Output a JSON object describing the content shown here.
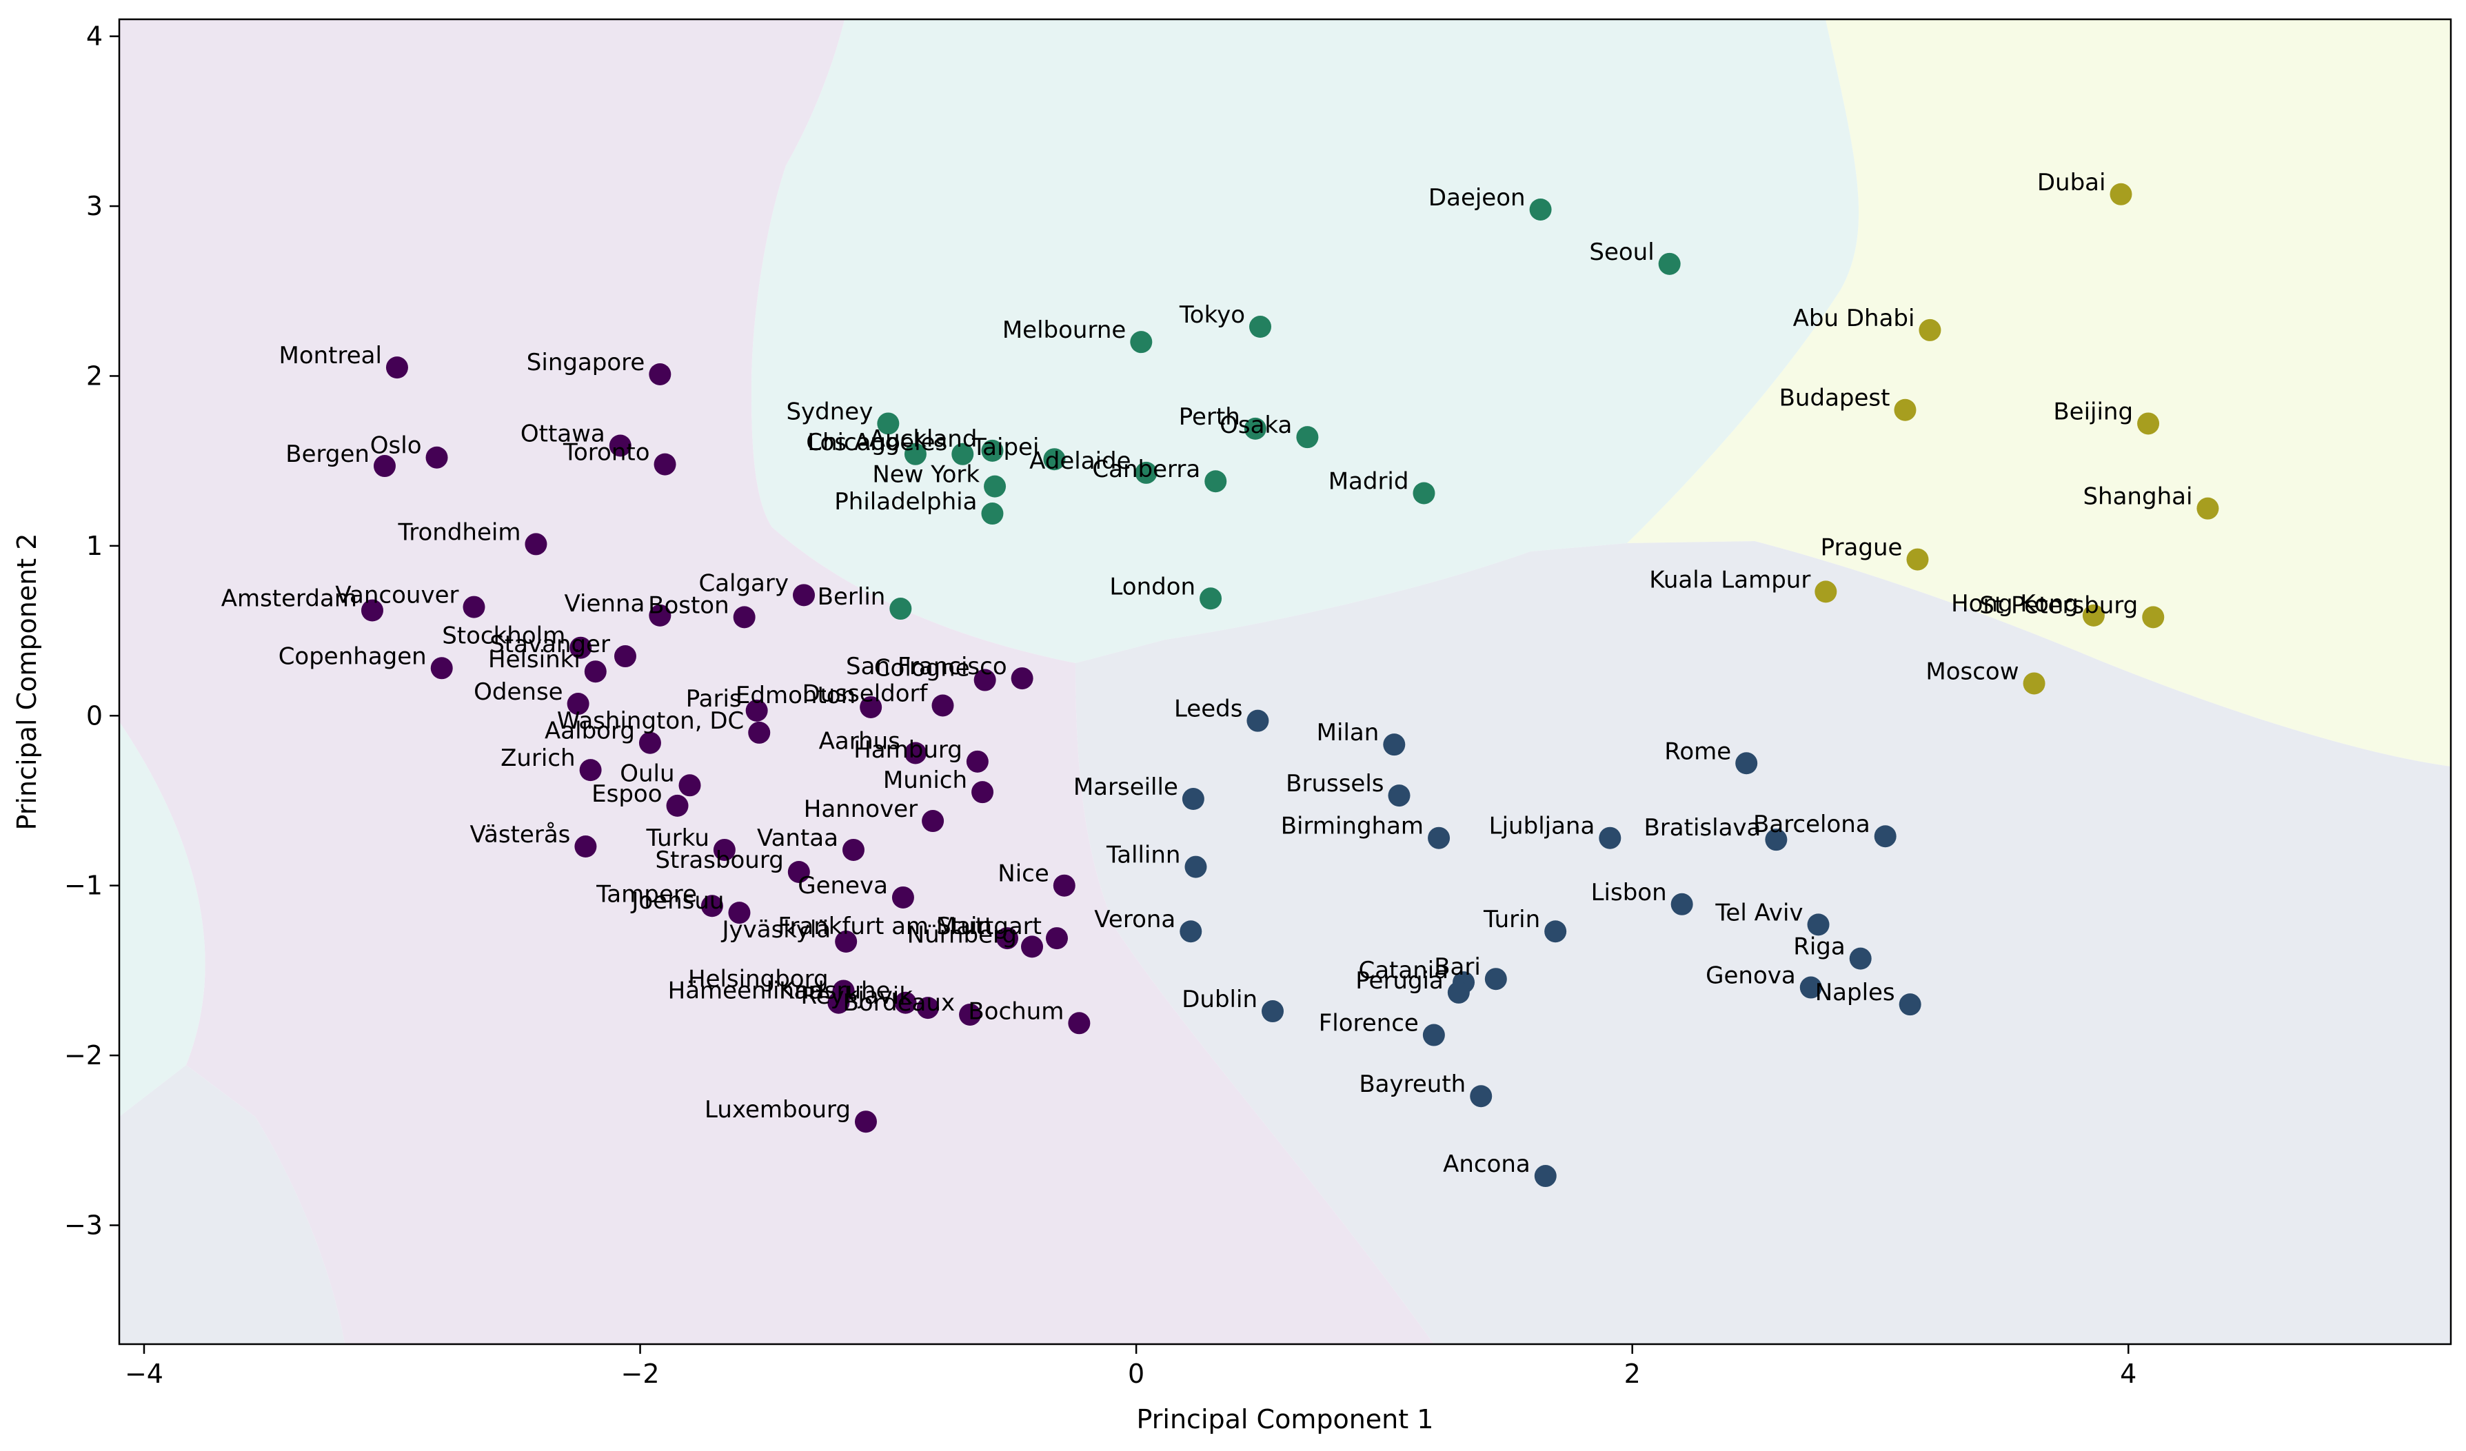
{
  "chart_data": {
    "type": "scatter",
    "title": "",
    "xlabel": "Principal Component 1",
    "ylabel": "Principal Component 2",
    "xlim": [
      -4.1,
      5.3
    ],
    "ylim": [
      -3.7,
      4.1
    ],
    "xticks": [
      -4,
      -2,
      0,
      2,
      4
    ],
    "yticks": [
      -3,
      -2,
      -1,
      0,
      1,
      2,
      3,
      4
    ],
    "xtick_labels": [
      "−4",
      "−2",
      "0",
      "2",
      "4"
    ],
    "ytick_labels": [
      "−3",
      "−2",
      "−1",
      "0",
      "1",
      "2",
      "3",
      "4"
    ],
    "grid": false,
    "cluster_colors": [
      "#440154",
      "#31688e",
      "#21918c",
      "#fde725"
    ],
    "point_colors": [
      "#440154",
      "#2b4a6b",
      "#23805f",
      "#a79e1f"
    ],
    "points": [
      {
        "label": "Montreal",
        "x": -2.98,
        "y": 2.05,
        "cluster": 0
      },
      {
        "label": "Singapore",
        "x": -1.92,
        "y": 2.01,
        "cluster": 0
      },
      {
        "label": "Ottawa",
        "x": -2.08,
        "y": 1.59,
        "cluster": 0
      },
      {
        "label": "Toronto",
        "x": -1.9,
        "y": 1.48,
        "cluster": 0
      },
      {
        "label": "Oslo",
        "x": -2.82,
        "y": 1.52,
        "cluster": 0
      },
      {
        "label": "Bergen",
        "x": -3.03,
        "y": 1.47,
        "cluster": 0
      },
      {
        "label": "Trondheim",
        "x": -2.42,
        "y": 1.01,
        "cluster": 0
      },
      {
        "label": "Amsterdam",
        "x": -3.08,
        "y": 0.62,
        "cluster": 0
      },
      {
        "label": "Vancouver",
        "x": -2.67,
        "y": 0.64,
        "cluster": 0
      },
      {
        "label": "Vienna",
        "x": -1.92,
        "y": 0.59,
        "cluster": 0
      },
      {
        "label": "Boston",
        "x": -1.58,
        "y": 0.58,
        "cluster": 0
      },
      {
        "label": "Calgary",
        "x": -1.34,
        "y": 0.71,
        "cluster": 0
      },
      {
        "label": "Copenhagen",
        "x": -2.8,
        "y": 0.28,
        "cluster": 0
      },
      {
        "label": "Stockholm",
        "x": -2.24,
        "y": 0.4,
        "cluster": 0
      },
      {
        "label": "Stavanger",
        "x": -2.06,
        "y": 0.35,
        "cluster": 0
      },
      {
        "label": "Helsinki",
        "x": -2.18,
        "y": 0.26,
        "cluster": 0
      },
      {
        "label": "Odense",
        "x": -2.25,
        "y": 0.07,
        "cluster": 0
      },
      {
        "label": "Paris",
        "x": -1.53,
        "y": 0.03,
        "cluster": 0
      },
      {
        "label": "Edmonton",
        "x": -1.07,
        "y": 0.05,
        "cluster": 0
      },
      {
        "label": "Dusseldorf",
        "x": -0.78,
        "y": 0.06,
        "cluster": 0
      },
      {
        "label": "Cologne",
        "x": -0.61,
        "y": 0.21,
        "cluster": 0
      },
      {
        "label": "San Francisco",
        "x": -0.46,
        "y": 0.22,
        "cluster": 0
      },
      {
        "label": "Washington, DC",
        "x": -1.52,
        "y": -0.1,
        "cluster": 0
      },
      {
        "label": "Aalborg",
        "x": -1.96,
        "y": -0.16,
        "cluster": 0
      },
      {
        "label": "Aarhus",
        "x": -0.89,
        "y": -0.22,
        "cluster": 0
      },
      {
        "label": "Hamburg",
        "x": -0.64,
        "y": -0.27,
        "cluster": 0
      },
      {
        "label": "Zurich",
        "x": -2.2,
        "y": -0.32,
        "cluster": 0
      },
      {
        "label": "Oulu",
        "x": -1.8,
        "y": -0.41,
        "cluster": 0
      },
      {
        "label": "Espoo",
        "x": -1.85,
        "y": -0.53,
        "cluster": 0
      },
      {
        "label": "Munich",
        "x": -0.62,
        "y": -0.45,
        "cluster": 0
      },
      {
        "label": "Hannover",
        "x": -0.82,
        "y": -0.62,
        "cluster": 0
      },
      {
        "label": "Västerås",
        "x": -2.22,
        "y": -0.77,
        "cluster": 0
      },
      {
        "label": "Turku",
        "x": -1.66,
        "y": -0.79,
        "cluster": 0
      },
      {
        "label": "Vantaa",
        "x": -1.14,
        "y": -0.79,
        "cluster": 0
      },
      {
        "label": "Strasbourg",
        "x": -1.36,
        "y": -0.92,
        "cluster": 0
      },
      {
        "label": "Geneva",
        "x": -0.94,
        "y": -1.07,
        "cluster": 0
      },
      {
        "label": "Nice",
        "x": -0.29,
        "y": -1.0,
        "cluster": 0
      },
      {
        "label": "Tampere",
        "x": -1.71,
        "y": -1.12,
        "cluster": 0
      },
      {
        "label": "Joensuu",
        "x": -1.6,
        "y": -1.16,
        "cluster": 0
      },
      {
        "label": "Jyväskylä",
        "x": -1.17,
        "y": -1.33,
        "cluster": 0
      },
      {
        "label": "Frankfurt am Main",
        "x": -0.52,
        "y": -1.31,
        "cluster": 0
      },
      {
        "label": "Nürnberg",
        "x": -0.42,
        "y": -1.36,
        "cluster": 0
      },
      {
        "label": "Stuttgart",
        "x": -0.32,
        "y": -1.31,
        "cluster": 0
      },
      {
        "label": "Helsingborg",
        "x": -1.18,
        "y": -1.62,
        "cluster": 0
      },
      {
        "label": "Hämeenlinna",
        "x": -1.2,
        "y": -1.69,
        "cluster": 0
      },
      {
        "label": "Karlsruhe",
        "x": -0.93,
        "y": -1.69,
        "cluster": 0
      },
      {
        "label": "Reykjavik",
        "x": -0.84,
        "y": -1.72,
        "cluster": 0
      },
      {
        "label": "Bordeaux",
        "x": -0.67,
        "y": -1.76,
        "cluster": 0
      },
      {
        "label": "Bochum",
        "x": -0.23,
        "y": -1.81,
        "cluster": 0
      },
      {
        "label": "Luxembourg",
        "x": -1.09,
        "y": -2.39,
        "cluster": 0
      },
      {
        "label": "Leeds",
        "x": 0.49,
        "y": -0.03,
        "cluster": 1
      },
      {
        "label": "Milan",
        "x": 1.04,
        "y": -0.17,
        "cluster": 1
      },
      {
        "label": "Rome",
        "x": 2.46,
        "y": -0.28,
        "cluster": 1
      },
      {
        "label": "Marseille",
        "x": 0.23,
        "y": -0.49,
        "cluster": 1
      },
      {
        "label": "Brussels",
        "x": 1.06,
        "y": -0.47,
        "cluster": 1
      },
      {
        "label": "Birmingham",
        "x": 1.22,
        "y": -0.72,
        "cluster": 1
      },
      {
        "label": "Ljubljana",
        "x": 1.91,
        "y": -0.72,
        "cluster": 1
      },
      {
        "label": "Bratislava",
        "x": 2.58,
        "y": -0.73,
        "cluster": 1
      },
      {
        "label": "Barcelona",
        "x": 3.02,
        "y": -0.71,
        "cluster": 1
      },
      {
        "label": "Tallinn",
        "x": 0.24,
        "y": -0.89,
        "cluster": 1
      },
      {
        "label": "Lisbon",
        "x": 2.2,
        "y": -1.11,
        "cluster": 1
      },
      {
        "label": "Tel Aviv",
        "x": 2.75,
        "y": -1.23,
        "cluster": 1
      },
      {
        "label": "Verona",
        "x": 0.22,
        "y": -1.27,
        "cluster": 1
      },
      {
        "label": "Turin",
        "x": 1.69,
        "y": -1.27,
        "cluster": 1
      },
      {
        "label": "Riga",
        "x": 2.92,
        "y": -1.43,
        "cluster": 1
      },
      {
        "label": "Catania",
        "x": 1.32,
        "y": -1.57,
        "cluster": 1
      },
      {
        "label": "Bari",
        "x": 1.45,
        "y": -1.55,
        "cluster": 1
      },
      {
        "label": "Perugia",
        "x": 1.3,
        "y": -1.63,
        "cluster": 1
      },
      {
        "label": "Genova",
        "x": 2.72,
        "y": -1.6,
        "cluster": 1
      },
      {
        "label": "Naples",
        "x": 3.12,
        "y": -1.7,
        "cluster": 1
      },
      {
        "label": "Dublin",
        "x": 0.55,
        "y": -1.74,
        "cluster": 1
      },
      {
        "label": "Florence",
        "x": 1.2,
        "y": -1.88,
        "cluster": 1
      },
      {
        "label": "Bayreuth",
        "x": 1.39,
        "y": -2.24,
        "cluster": 1
      },
      {
        "label": "Ancona",
        "x": 1.65,
        "y": -2.71,
        "cluster": 1
      },
      {
        "label": "Daejeon",
        "x": 1.63,
        "y": 2.98,
        "cluster": 2
      },
      {
        "label": "Seoul",
        "x": 2.15,
        "y": 2.66,
        "cluster": 2
      },
      {
        "label": "Tokyo",
        "x": 0.5,
        "y": 2.29,
        "cluster": 2
      },
      {
        "label": "Melbourne",
        "x": 0.02,
        "y": 2.2,
        "cluster": 2
      },
      {
        "label": "Sydney",
        "x": -1.0,
        "y": 1.72,
        "cluster": 2
      },
      {
        "label": "Perth",
        "x": 0.48,
        "y": 1.69,
        "cluster": 2
      },
      {
        "label": "Osaka",
        "x": 0.69,
        "y": 1.64,
        "cluster": 2
      },
      {
        "label": "Chicago",
        "x": -0.89,
        "y": 1.54,
        "cluster": 2
      },
      {
        "label": "Los Angeles",
        "x": -0.7,
        "y": 1.54,
        "cluster": 2
      },
      {
        "label": "Auckland",
        "x": -0.58,
        "y": 1.56,
        "cluster": 2
      },
      {
        "label": "Taipei",
        "x": -0.33,
        "y": 1.51,
        "cluster": 2
      },
      {
        "label": "Adelaide",
        "x": 0.04,
        "y": 1.43,
        "cluster": 2
      },
      {
        "label": "Canberra",
        "x": 0.32,
        "y": 1.38,
        "cluster": 2
      },
      {
        "label": "New York",
        "x": -0.57,
        "y": 1.35,
        "cluster": 2
      },
      {
        "label": "Madrid",
        "x": 1.16,
        "y": 1.31,
        "cluster": 2
      },
      {
        "label": "Philadelphia",
        "x": -0.58,
        "y": 1.19,
        "cluster": 2
      },
      {
        "label": "London",
        "x": 0.3,
        "y": 0.69,
        "cluster": 2
      },
      {
        "label": "Berlin",
        "x": -0.95,
        "y": 0.63,
        "cluster": 2
      },
      {
        "label": "Dubai",
        "x": 3.97,
        "y": 3.07,
        "cluster": 3
      },
      {
        "label": "Abu Dhabi",
        "x": 3.2,
        "y": 2.27,
        "cluster": 3
      },
      {
        "label": "Budapest",
        "x": 3.1,
        "y": 1.8,
        "cluster": 3
      },
      {
        "label": "Beijing",
        "x": 4.08,
        "y": 1.72,
        "cluster": 3
      },
      {
        "label": "Shanghai",
        "x": 4.32,
        "y": 1.22,
        "cluster": 3
      },
      {
        "label": "Prague",
        "x": 3.15,
        "y": 0.92,
        "cluster": 3
      },
      {
        "label": "Kuala Lampur",
        "x": 2.78,
        "y": 0.73,
        "cluster": 3
      },
      {
        "label": "Hong Kong",
        "x": 3.86,
        "y": 0.59,
        "cluster": 3
      },
      {
        "label": "St Petersburg",
        "x": 4.1,
        "y": 0.58,
        "cluster": 3
      },
      {
        "label": "Moscow",
        "x": 3.62,
        "y": 0.19,
        "cluster": 3
      }
    ]
  }
}
